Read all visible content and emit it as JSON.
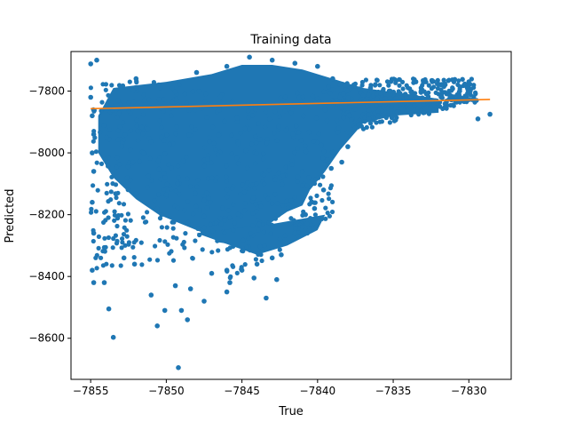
{
  "chart_data": {
    "type": "scatter",
    "title": "Training data",
    "xlabel": "True",
    "ylabel": "Predicted",
    "xlim": [
      -7856.3,
      -7827.2
    ],
    "ylim": [
      -8733,
      -7672
    ],
    "xticks": [
      -7855,
      -7850,
      -7845,
      -7840,
      -7835,
      -7830
    ],
    "yticks": [
      -8600,
      -8400,
      -8200,
      -8000,
      -7800
    ],
    "grid": false,
    "legend": "none",
    "series": [
      {
        "kind": "points",
        "color": "#1f77b4",
        "points": [
          [
            -7855.0,
            -7712
          ],
          [
            -7854.6,
            -7700
          ],
          [
            -7855.0,
            -7820
          ],
          [
            -7854.9,
            -7880
          ],
          [
            -7854.8,
            -7940
          ],
          [
            -7854.9,
            -8000
          ],
          [
            -7854.8,
            -8060
          ],
          [
            -7854.9,
            -8160
          ],
          [
            -7854.8,
            -8260
          ],
          [
            -7854.9,
            -8380
          ],
          [
            -7854.8,
            -8420
          ],
          [
            -7854.1,
            -8420
          ],
          [
            -7853.8,
            -8505
          ],
          [
            -7853.5,
            -8597
          ],
          [
            -7852.8,
            -8340
          ],
          [
            -7852.1,
            -8360
          ],
          [
            -7851.0,
            -8460
          ],
          [
            -7850.6,
            -8560
          ],
          [
            -7850.1,
            -8510
          ],
          [
            -7849.4,
            -8430
          ],
          [
            -7849.0,
            -8510
          ],
          [
            -7848.6,
            -8540
          ],
          [
            -7848.4,
            -8440
          ],
          [
            -7849.2,
            -8695
          ],
          [
            -7853.2,
            -7830
          ],
          [
            -7852.0,
            -7760
          ],
          [
            -7850.5,
            -7780
          ],
          [
            -7848.0,
            -7740
          ],
          [
            -7846.0,
            -7720
          ],
          [
            -7844.5,
            -7690
          ],
          [
            -7843.0,
            -7700
          ],
          [
            -7841.5,
            -7710
          ],
          [
            -7840.0,
            -7720
          ],
          [
            -7839.0,
            -7760
          ],
          [
            -7837.6,
            -7780
          ],
          [
            -7836.5,
            -7790
          ],
          [
            -7835.2,
            -7800
          ],
          [
            -7834.2,
            -7810
          ],
          [
            -7833.5,
            -7770
          ],
          [
            -7831.8,
            -7820
          ],
          [
            -7830.6,
            -7830
          ],
          [
            -7830.1,
            -7790
          ],
          [
            -7829.5,
            -7830
          ],
          [
            -7828.6,
            -7875
          ],
          [
            -7829.4,
            -7890
          ],
          [
            -7833.9,
            -7850
          ],
          [
            -7835.0,
            -7880
          ],
          [
            -7836.6,
            -7890
          ],
          [
            -7837.5,
            -7920
          ],
          [
            -7838.0,
            -7980
          ],
          [
            -7838.4,
            -8030
          ],
          [
            -7839.1,
            -8050
          ],
          [
            -7839.6,
            -8120
          ],
          [
            -7840.2,
            -8180
          ],
          [
            -7840.8,
            -8200
          ],
          [
            -7841.0,
            -8240
          ],
          [
            -7841.5,
            -8260
          ],
          [
            -7842.0,
            -8290
          ],
          [
            -7842.4,
            -8330
          ],
          [
            -7843.0,
            -8340
          ],
          [
            -7844.0,
            -8360
          ],
          [
            -7845.0,
            -8380
          ],
          [
            -7846.0,
            -8380
          ],
          [
            -7847.0,
            -8390
          ],
          [
            -7845.8,
            -8420
          ],
          [
            -7844.2,
            -8405
          ],
          [
            -7842.7,
            -8410
          ],
          [
            -7846.0,
            -8450
          ],
          [
            -7847.5,
            -8480
          ],
          [
            -7843.4,
            -8470
          ],
          [
            -7833.0,
            -7840
          ],
          [
            -7834.0,
            -7840
          ],
          [
            -7833.0,
            -7870
          ]
        ]
      },
      {
        "kind": "line",
        "color": "#ff7f0e",
        "points": [
          [
            -7855.0,
            -7857
          ],
          [
            -7828.6,
            -7827
          ]
        ]
      }
    ]
  }
}
